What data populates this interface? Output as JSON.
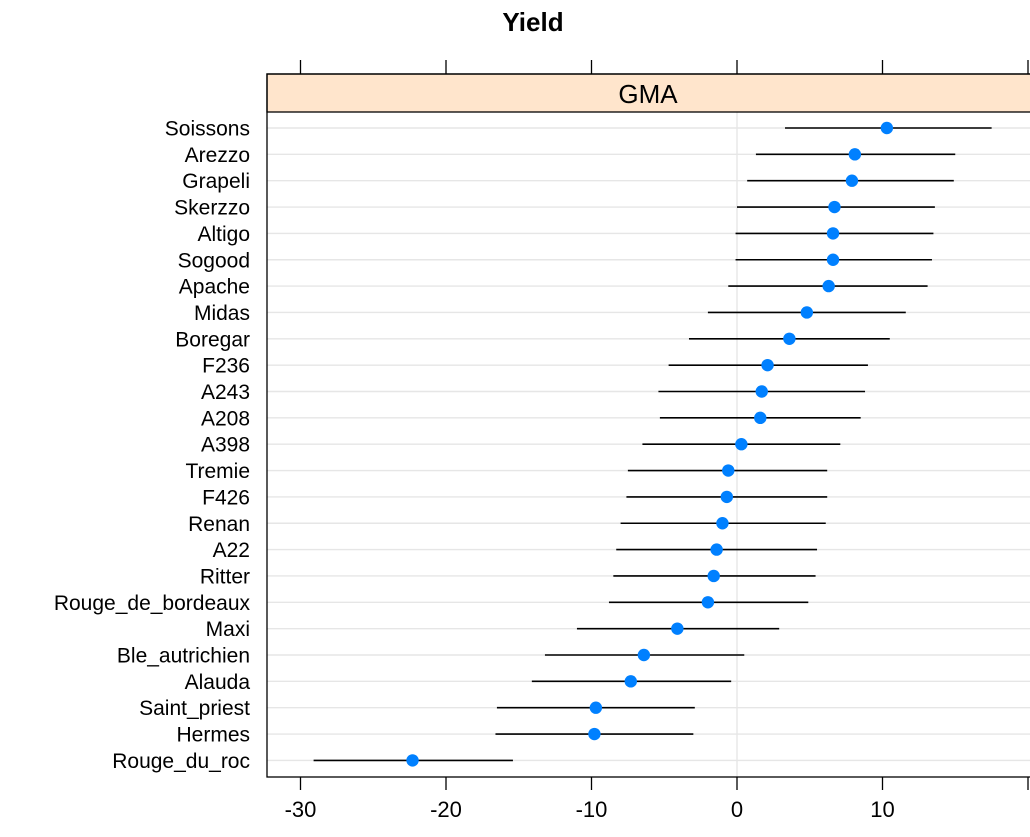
{
  "chart_data": {
    "type": "scatter",
    "title": "Yield",
    "panel_label": "GMA",
    "categories": [
      "Soissons",
      "Arezzo",
      "Grapeli",
      "Skerzzo",
      "Altigo",
      "Sogood",
      "Apache",
      "Midas",
      "Boregar",
      "F236",
      "A243",
      "A208",
      "A398",
      "Tremie",
      "F426",
      "Renan",
      "A22",
      "Ritter",
      "Rouge_de_bordeaux",
      "Maxi",
      "Ble_autrichien",
      "Alauda",
      "Saint_priest",
      "Hermes",
      "Rouge_du_roc"
    ],
    "estimate": [
      10.3,
      8.1,
      7.9,
      6.7,
      6.6,
      6.6,
      6.3,
      4.8,
      3.6,
      2.1,
      1.7,
      1.6,
      0.3,
      -0.6,
      -0.7,
      -1.0,
      -1.4,
      -1.6,
      -2.0,
      -4.1,
      -6.4,
      -7.3,
      -9.7,
      -9.8,
      -22.3
    ],
    "lower": [
      3.3,
      1.3,
      0.7,
      0.0,
      -0.1,
      -0.1,
      -0.6,
      -2.0,
      -3.3,
      -4.7,
      -5.4,
      -5.3,
      -6.5,
      -7.5,
      -7.6,
      -8.0,
      -8.3,
      -8.5,
      -8.8,
      -11.0,
      -13.2,
      -14.1,
      -16.5,
      -16.6,
      -29.1
    ],
    "upper": [
      17.5,
      15.0,
      14.9,
      13.6,
      13.5,
      13.4,
      13.1,
      11.6,
      10.5,
      9.0,
      8.8,
      8.5,
      7.1,
      6.2,
      6.2,
      6.1,
      5.5,
      5.4,
      4.9,
      2.9,
      0.5,
      -0.4,
      -2.9,
      -3.0,
      -15.4
    ],
    "xticks": [
      -30,
      -20,
      -10,
      0,
      10
    ],
    "xlim": [
      -32.3,
      20
    ],
    "xlabel": "",
    "ylabel": "",
    "reference_line": 0,
    "grid": true,
    "colors": {
      "point": "#0080FF",
      "bar": "#000000",
      "grid": "#E6E6E6",
      "strip": "#FFE5CC",
      "frame": "#000000"
    }
  }
}
